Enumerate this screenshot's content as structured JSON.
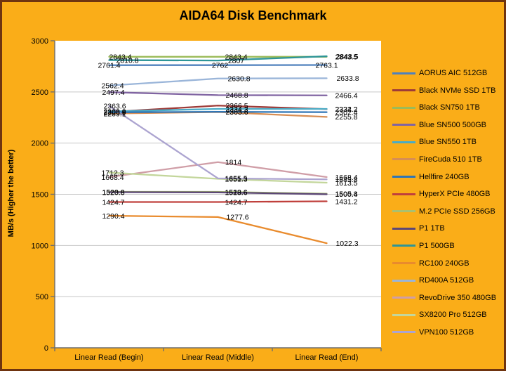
{
  "title": "AIDA64 Disk Benchmark",
  "colors": {
    "background": "#FAAD18",
    "frame_border": "#6F3410",
    "plot_background": "#FFFFFF",
    "gridline": "#C6C6C6",
    "axis": "#6E6E6E",
    "label_text": "#000000"
  },
  "chart_data": {
    "type": "line",
    "title": "AIDA64 Disk Benchmark",
    "xlabel": "",
    "ylabel": "MB/s (Higher the better)",
    "categories": [
      "Linear Read (Begin)",
      "Linear Read (Middle)",
      "Linear Read (End)"
    ],
    "y_ticks": [
      0,
      500,
      1000,
      1500,
      2000,
      2500,
      3000
    ],
    "ylim": [
      0,
      3000
    ],
    "grid": true,
    "legend_position": "right",
    "series": [
      {
        "name": "AORUS AIC 512GB",
        "color": "#4F81BD",
        "values": [
          2761.4,
          2762,
          2763.1
        ],
        "labels": [
          "2761.4",
          "2762",
          "2763.1"
        ],
        "ldx": [
          0,
          3,
          0
        ]
      },
      {
        "name": "Black NVMe SSD 1TB",
        "color": "#9E3B38",
        "values": [
          2303.9,
          2366.5,
          2332.2
        ],
        "labels": [
          "2303.9",
          "2366.5",
          "2332.2"
        ],
        "ldx": [
          8,
          27,
          28
        ]
      },
      {
        "name": "Black SN750 1TB",
        "color": "#9BBB59",
        "values": [
          2843.4,
          2843.4,
          2843.5
        ],
        "labels": [
          "2843.4",
          "2843.4",
          "2843.5"
        ],
        "ldx": [
          16,
          26,
          28
        ]
      },
      {
        "name": "Blue SN500 500GB",
        "color": "#8064A2",
        "values": [
          2497.4,
          2468.8,
          2466.4
        ],
        "labels": [
          "2497.4",
          "2468.8",
          "2466.4"
        ],
        "ldx": [
          6,
          27,
          28
        ]
      },
      {
        "name": "Blue SN550 1TB",
        "color": "#4BACC6",
        "values": [
          2308.8,
          2334.3,
          2334.2
        ],
        "labels": [
          "2308.8",
          "2334.3",
          "2334.2"
        ],
        "ldx": [
          8,
          27,
          28
        ]
      },
      {
        "name": "FireCuda 510 1TB",
        "color": "#D78E54",
        "values": [
          2289.1,
          2303.6,
          2255.8
        ],
        "labels": [
          "2289.1",
          "2303.6",
          "2255.8"
        ],
        "ldx": [
          8,
          27,
          28
        ]
      },
      {
        "name": "Hellfire 240GB",
        "color": "#2E75B6",
        "values": [
          2300.9,
          2305.6,
          2302.4
        ],
        "labels": [
          "2300.9",
          "2305.6",
          "2302.4"
        ],
        "ldx": [
          8,
          27,
          28
        ]
      },
      {
        "name": "HyperX PCIe 480GB",
        "color": "#C0403C",
        "values": [
          1424.7,
          1424.7,
          1431.2
        ],
        "labels": [
          "1424.7",
          "1424.7",
          "1431.2"
        ],
        "ldx": [
          6,
          26,
          28
        ]
      },
      {
        "name": "M.2 PCIe SSD 256GB",
        "color": "#A9C070",
        "values": [
          1523.8,
          1523.6,
          1505.8
        ],
        "labels": [
          "1523.8",
          "1523.6",
          "1505.8"
        ],
        "ldx": [
          6,
          26,
          28
        ]
      },
      {
        "name": "P1 1TB",
        "color": "#5C4776",
        "values": [
          1520.8,
          1518.6,
          1500.4
        ],
        "labels": [
          "1520.8",
          "1518.6",
          "1500.4"
        ],
        "ldx": [
          6,
          26,
          28
        ]
      },
      {
        "name": "P1 500GB",
        "color": "#2E9597",
        "values": [
          2810.8,
          2807,
          2848.5
        ],
        "labels": [
          "2810.8",
          "2807",
          "2848.5"
        ],
        "ldx": [
          26,
          26,
          29
        ]
      },
      {
        "name": "RC100 240GB",
        "color": "#E98B2D",
        "values": [
          1290.4,
          1277.6,
          1022.3
        ],
        "labels": [
          "1290.4",
          "1277.6",
          "1022.3"
        ],
        "ldx": [
          6,
          28,
          29
        ]
      },
      {
        "name": "RD400A 512GB",
        "color": "#9AB5D9",
        "values": [
          2562.4,
          2630.8,
          2633.8
        ],
        "labels": [
          "2562.4",
          "2630.8",
          "2633.8"
        ],
        "ldx": [
          5,
          30,
          30
        ]
      },
      {
        "name": "RevoDrive 350 480GB",
        "color": "#D09EA7",
        "values": [
          1668.4,
          1814,
          1668.4
        ],
        "labels": [
          "1668.4",
          "1814",
          "1668.4"
        ],
        "ldx": [
          5,
          22,
          28
        ]
      },
      {
        "name": "SX8200 Pro 512GB",
        "color": "#C3D69B",
        "values": [
          1712.3,
          1651.3,
          1613.5
        ],
        "labels": [
          "1712.3",
          "1651.3",
          "1613.5"
        ],
        "ldx": [
          5,
          26,
          28
        ]
      },
      {
        "name": "VPN100 512GB",
        "color": "#ACA4D0",
        "values": [
          2363.6,
          1655.5,
          1645.8
        ],
        "labels": [
          "2363.6",
          "1655.5",
          "1645.8"
        ],
        "ldx": [
          8,
          26,
          28
        ]
      }
    ]
  }
}
